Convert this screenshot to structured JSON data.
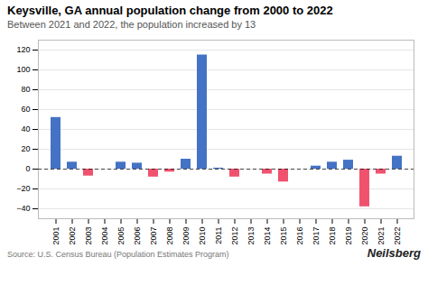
{
  "chart_data": {
    "type": "bar",
    "title": "Keysville, GA annual population change from 2000 to 2022",
    "subtitle": "Between 2021 and 2022, the population increased by 13",
    "annotations": [
      "Source: U.S. Census Bureau (Population Estimates Program)",
      "Neilsberg"
    ],
    "categories": [
      "2001",
      "2002",
      "2003",
      "2004",
      "2005",
      "2006",
      "2007",
      "2008",
      "2009",
      "2010",
      "2011",
      "2012",
      "2013",
      "2014",
      "2015",
      "2016",
      "2017",
      "2018",
      "2019",
      "2020",
      "2021",
      "2022"
    ],
    "values": [
      52,
      7,
      -7,
      0,
      7,
      6,
      -8,
      -3,
      10,
      115,
      1,
      -8,
      0,
      -5,
      -13,
      0,
      3,
      7,
      9,
      -38,
      -5,
      13
    ],
    "colors": [
      "#4472C4",
      "#4472C4",
      "#F0526E",
      "#4472C4",
      "#4472C4",
      "#4472C4",
      "#F0526E",
      "#F0526E",
      "#4472C4",
      "#4472C4",
      "#4472C4",
      "#F0526E",
      "#4472C4",
      "#F0526E",
      "#F0526E",
      "#4472C4",
      "#4472C4",
      "#4472C4",
      "#4472C4",
      "#F0526E",
      "#F0526E",
      "#4472C4"
    ],
    "ylim": [
      -50,
      130
    ],
    "yticks": [
      -40,
      -20,
      0,
      20,
      40,
      60,
      80,
      100,
      120
    ],
    "grid": true
  }
}
